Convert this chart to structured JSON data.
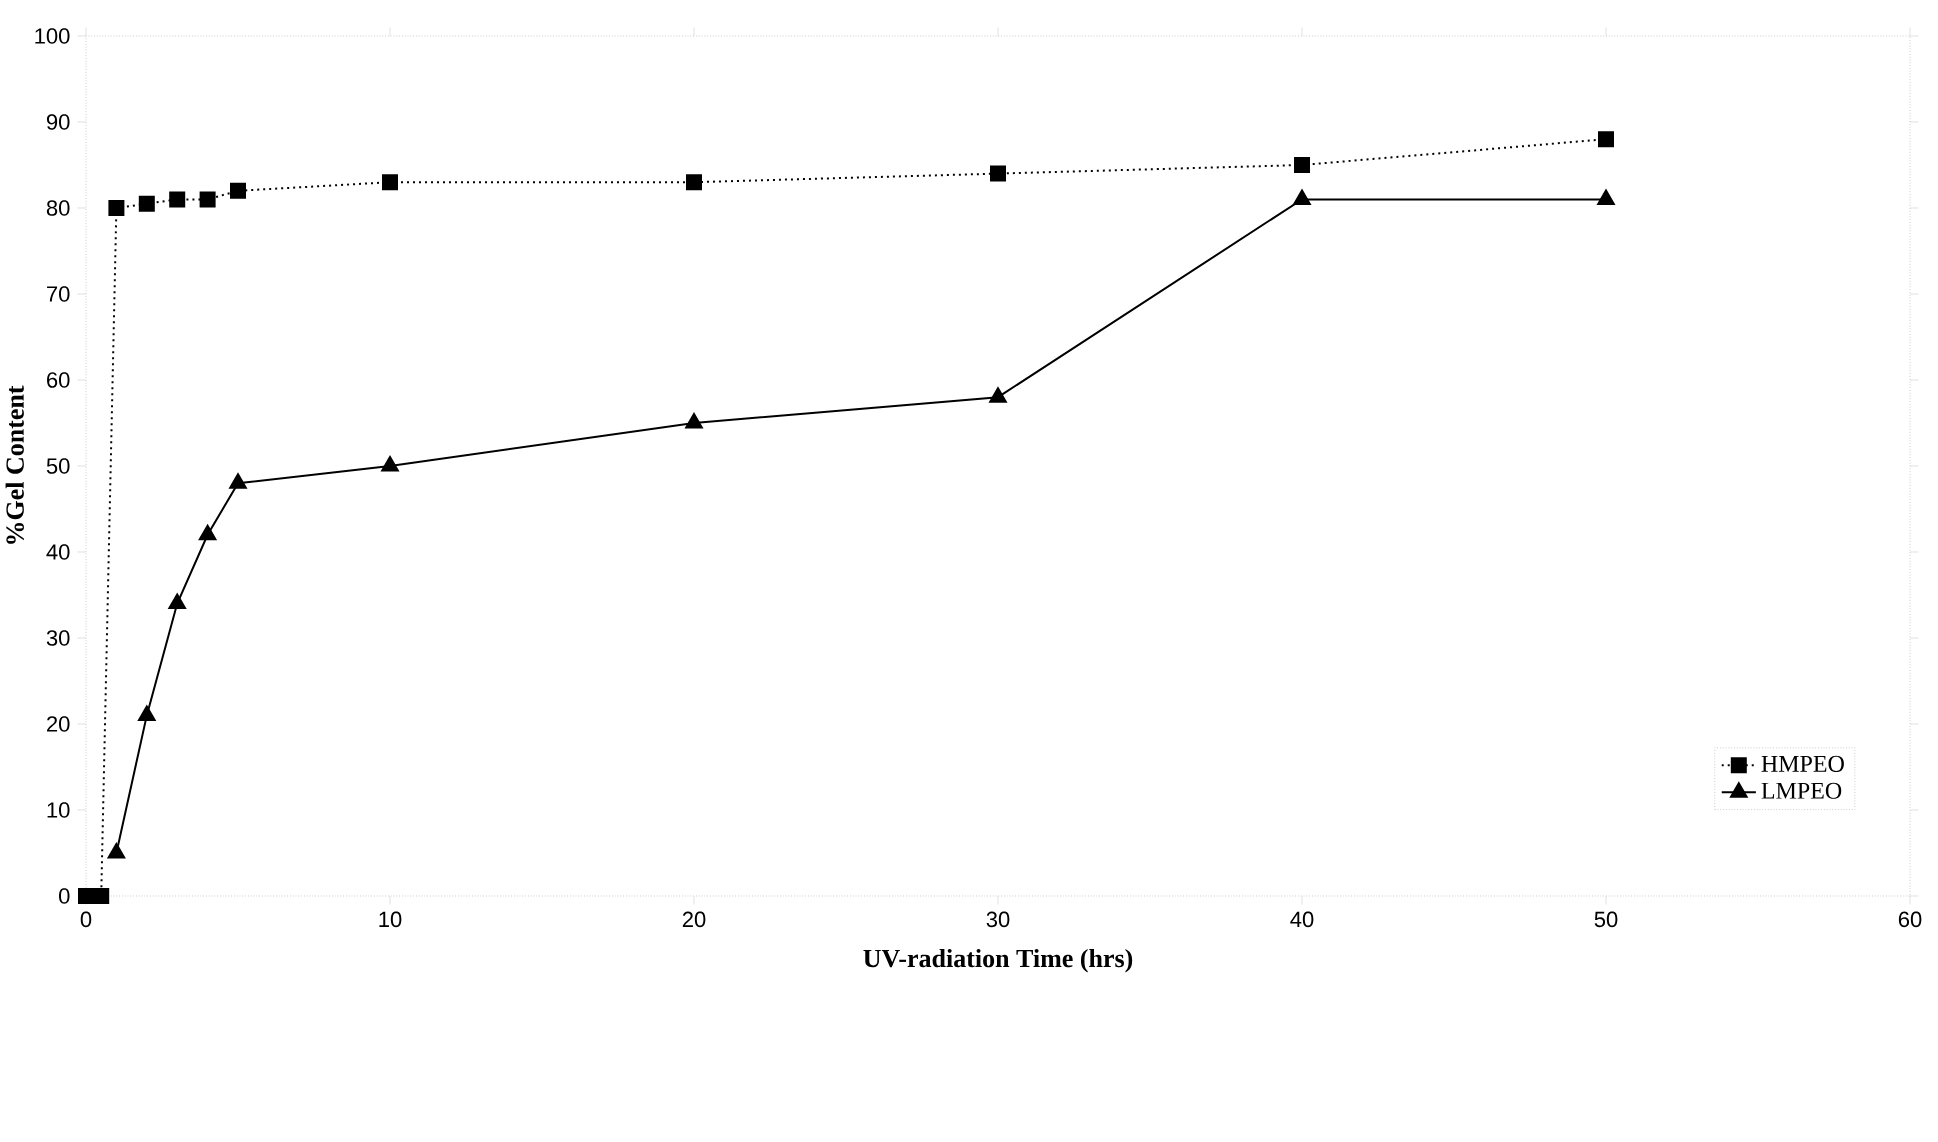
{
  "chart_data": {
    "type": "line",
    "xlabel": "UV-radiation Time (hrs)",
    "ylabel": "%Gel Content",
    "xlim": [
      0,
      60
    ],
    "xticks": [
      0,
      10,
      20,
      30,
      40,
      50,
      60
    ],
    "ylim": [
      0,
      100
    ],
    "yticks": [
      0,
      10,
      20,
      30,
      40,
      50,
      60,
      70,
      80,
      90,
      100
    ],
    "grid": false,
    "legend": "bottom right",
    "series": [
      {
        "name": "HMPEO",
        "color": "#000000",
        "marker": "square",
        "line_style": "dotted",
        "x": [
          0,
          0.5,
          1,
          2,
          3,
          4,
          5,
          10,
          20,
          30,
          40,
          50
        ],
        "values": [
          0,
          0,
          80,
          80.5,
          81,
          81,
          82,
          83,
          83,
          84,
          85,
          88
        ]
      },
      {
        "name": "LMPEO",
        "color": "#000000",
        "marker": "triangle",
        "line_style": "solid",
        "x": [
          1,
          2,
          3,
          4,
          5,
          10,
          20,
          30,
          40,
          50
        ],
        "values": [
          5,
          21,
          34,
          42,
          48,
          50,
          55,
          58,
          81,
          81
        ]
      }
    ]
  }
}
